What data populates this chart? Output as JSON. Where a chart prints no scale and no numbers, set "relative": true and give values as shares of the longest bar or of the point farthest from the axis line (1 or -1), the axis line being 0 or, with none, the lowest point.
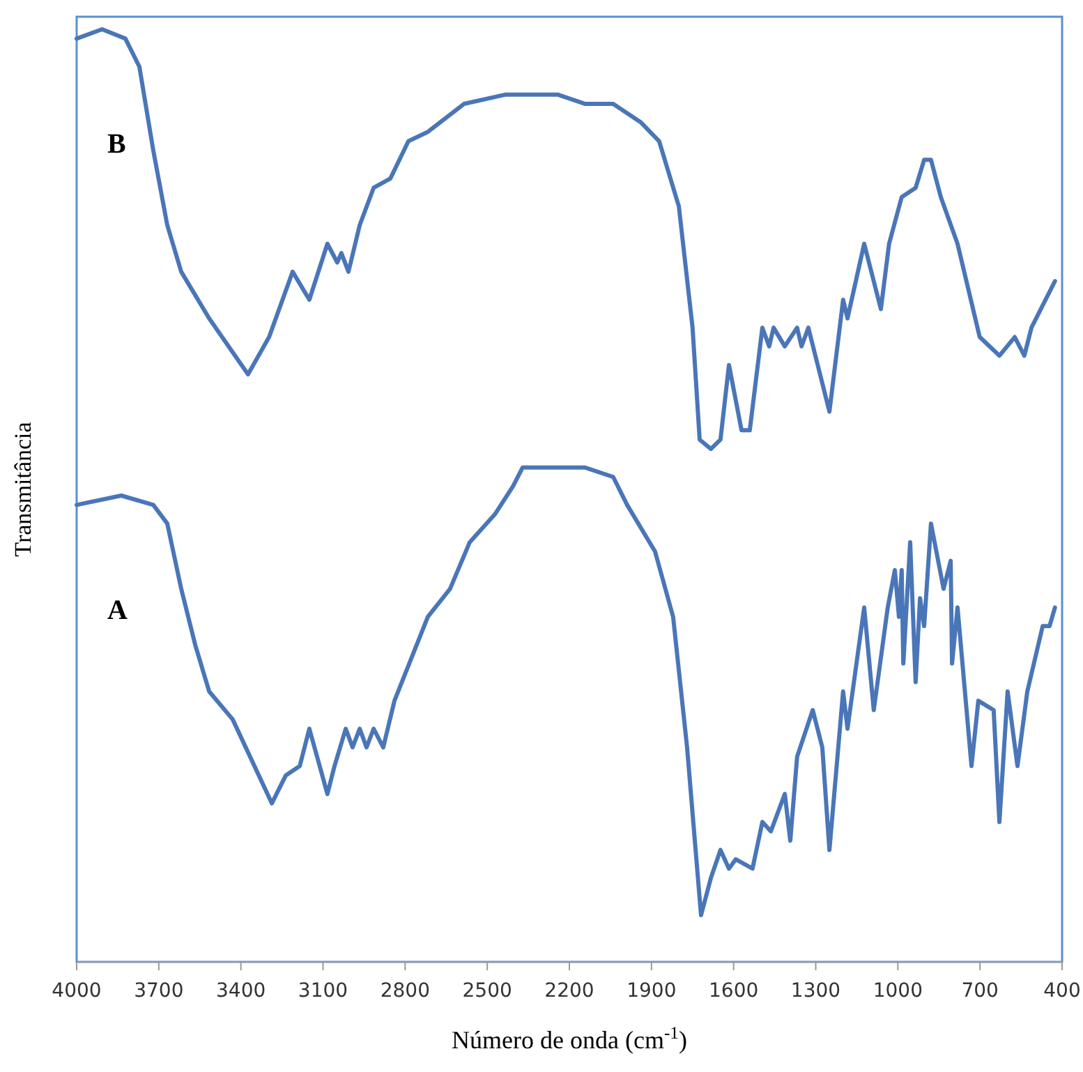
{
  "chart_data": {
    "type": "line",
    "relative": true,
    "xlabel": "Número de onda (cm$^{-1}$)",
    "ylabel": "Transmitância",
    "xlim": [
      4000,
      400
    ],
    "xticks": [
      4000,
      3700,
      3400,
      3100,
      2800,
      2500,
      2200,
      1900,
      1600,
      1300,
      1000,
      700,
      400
    ],
    "grid": false,
    "legend": false,
    "marker": "none",
    "line_style": "solid",
    "series": [
      {
        "name": "B",
        "color": "#4a76b8",
        "x": [
          4000,
          3907,
          3822,
          3771,
          3720,
          3669,
          3618,
          3516,
          3374,
          3297,
          3211,
          3150,
          3084,
          3048,
          3033,
          3007,
          2966,
          2915,
          2854,
          2788,
          2717,
          2585,
          2432,
          2386,
          2320,
          2243,
          2142,
          2040,
          1938,
          1872,
          1800,
          1750,
          1724,
          1683,
          1648,
          1617,
          1571,
          1541,
          1495,
          1470,
          1454,
          1413,
          1368,
          1352,
          1327,
          1250,
          1200,
          1184,
          1123,
          1062,
          1032,
          986,
          935,
          904,
          879,
          843,
          782,
          701,
          629,
          573,
          538,
          512,
          426
        ],
        "values": [
          0.99,
          1.0,
          0.99,
          0.96,
          0.87,
          0.79,
          0.74,
          0.69,
          0.63,
          0.67,
          0.74,
          0.71,
          0.77,
          0.75,
          0.76,
          0.74,
          0.79,
          0.83,
          0.84,
          0.88,
          0.89,
          0.92,
          0.93,
          0.93,
          0.93,
          0.93,
          0.92,
          0.92,
          0.9,
          0.88,
          0.81,
          0.68,
          0.56,
          0.55,
          0.56,
          0.64,
          0.57,
          0.57,
          0.68,
          0.66,
          0.68,
          0.66,
          0.68,
          0.66,
          0.68,
          0.59,
          0.71,
          0.69,
          0.77,
          0.7,
          0.77,
          0.82,
          0.83,
          0.86,
          0.86,
          0.82,
          0.77,
          0.67,
          0.65,
          0.67,
          0.65,
          0.68,
          0.73
        ]
      },
      {
        "name": "A",
        "color": "#4a76b8",
        "x": [
          4000,
          3837,
          3720,
          3669,
          3618,
          3567,
          3516,
          3430,
          3287,
          3236,
          3185,
          3150,
          3084,
          3058,
          3017,
          2992,
          2966,
          2941,
          2915,
          2880,
          2839,
          2717,
          2636,
          2564,
          2472,
          2406,
          2371,
          2310,
          2269,
          2177,
          2142,
          2040,
          1989,
          1887,
          1821,
          1770,
          1719,
          1683,
          1648,
          1617,
          1592,
          1531,
          1495,
          1464,
          1413,
          1393,
          1368,
          1311,
          1276,
          1250,
          1200,
          1184,
          1123,
          1088,
          1037,
          1011,
          996,
          986,
          980,
          955,
          935,
          919,
          904,
          879,
          833,
          807,
          802,
          782,
          731,
          706,
          650,
          629,
          599,
          563,
          527,
          471,
          446,
          426
        ],
        "values": [
          0.49,
          0.5,
          0.49,
          0.47,
          0.4,
          0.34,
          0.29,
          0.26,
          0.17,
          0.2,
          0.21,
          0.25,
          0.18,
          0.21,
          0.25,
          0.23,
          0.25,
          0.23,
          0.25,
          0.23,
          0.28,
          0.37,
          0.4,
          0.45,
          0.48,
          0.51,
          0.53,
          0.53,
          0.53,
          0.53,
          0.53,
          0.52,
          0.49,
          0.44,
          0.37,
          0.23,
          0.05,
          0.09,
          0.12,
          0.1,
          0.11,
          0.1,
          0.15,
          0.14,
          0.18,
          0.13,
          0.22,
          0.27,
          0.23,
          0.12,
          0.29,
          0.25,
          0.38,
          0.27,
          0.38,
          0.42,
          0.37,
          0.42,
          0.32,
          0.45,
          0.3,
          0.39,
          0.36,
          0.47,
          0.4,
          0.43,
          0.32,
          0.38,
          0.21,
          0.28,
          0.27,
          0.15,
          0.29,
          0.21,
          0.29,
          0.36,
          0.36,
          0.38
        ]
      }
    ]
  }
}
